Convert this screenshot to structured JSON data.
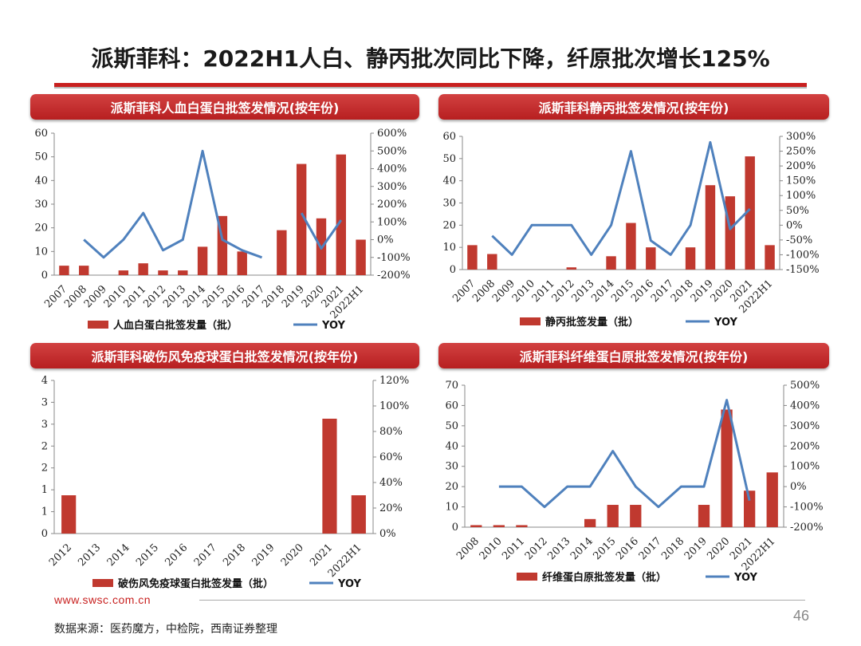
{
  "page": {
    "title": "派斯菲科：2022H1人白、静丙批次同比下降，纤原批次增长125%",
    "footer_url": "www.swsc.com.cn",
    "footer_source": "数据来源：医药魔方，中检院，西南证券整理",
    "page_number": "46"
  },
  "colors": {
    "bar": "#c0392f",
    "line": "#4f81bd",
    "header": "#c8201f"
  },
  "chart_data": [
    {
      "type": "bar+line",
      "title": "派斯菲科人血白蛋白批签发情况(按年份)",
      "categories": [
        "2007",
        "2008",
        "2009",
        "2010",
        "2011",
        "2012",
        "2013",
        "2014",
        "2015",
        "2016",
        "2017",
        "2018",
        "2019",
        "2020",
        "2021",
        "2022H1"
      ],
      "bar_series": {
        "name": "人血白蛋白批签发量（批）",
        "values": [
          4,
          4,
          0,
          2,
          5,
          2,
          2,
          12,
          25,
          10,
          0,
          19,
          47,
          24,
          51,
          15
        ]
      },
      "line_series": {
        "name": "YOY",
        "values": [
          null,
          0,
          -100,
          0,
          150,
          -60,
          0,
          500,
          0,
          -60,
          -100,
          null,
          150,
          -50,
          110,
          null
        ]
      },
      "y_left": {
        "min": 0,
        "max": 60,
        "ticks": [
          "0",
          "10",
          "20",
          "30",
          "40",
          "50",
          "60"
        ]
      },
      "y_right": {
        "min": -200,
        "max": 600,
        "ticks": [
          "-200%",
          "-100%",
          "0%",
          "100%",
          "200%",
          "300%",
          "400%",
          "500%",
          "600%"
        ]
      }
    },
    {
      "type": "bar+line",
      "title": "派斯菲科静丙批签发情况(按年份)",
      "categories": [
        "2007",
        "2008",
        "2009",
        "2010",
        "2011",
        "2012",
        "2013",
        "2014",
        "2015",
        "2016",
        "2017",
        "2018",
        "2019",
        "2020",
        "2021",
        "2022H1"
      ],
      "bar_series": {
        "name": "静丙批签发量（批）",
        "values": [
          11,
          7,
          0,
          0,
          0,
          1,
          0,
          6,
          21,
          10,
          0,
          10,
          38,
          33,
          51,
          11
        ]
      },
      "line_series": {
        "name": "YOY",
        "values": [
          null,
          -36,
          -100,
          0,
          0,
          0,
          -100,
          0,
          250,
          -52,
          -100,
          0,
          280,
          -13,
          55,
          null
        ]
      },
      "y_left": {
        "min": 0,
        "max": 60,
        "ticks": [
          "0",
          "10",
          "20",
          "30",
          "40",
          "50",
          "60"
        ]
      },
      "y_right": {
        "min": -150,
        "max": 300,
        "ticks": [
          "-150%",
          "-100%",
          "-50%",
          "0%",
          "50%",
          "100%",
          "150%",
          "200%",
          "250%",
          "300%"
        ]
      }
    },
    {
      "type": "bar+line",
      "title": "派斯菲科破伤风免疫球蛋白批签发情况(按年份)",
      "categories": [
        "2012",
        "2013",
        "2014",
        "2015",
        "2016",
        "2017",
        "2018",
        "2019",
        "2020",
        "2021",
        "2022H1"
      ],
      "bar_series": {
        "name": "破伤风免疫球蛋白批签发量（批）",
        "values": [
          1,
          0,
          0,
          0,
          0,
          0,
          0,
          0,
          0,
          3,
          1
        ]
      },
      "line_series": {
        "name": "YOY",
        "values": [
          null,
          null,
          null,
          null,
          null,
          null,
          null,
          null,
          null,
          null,
          null
        ]
      },
      "y_left": {
        "min": 0,
        "max": 4,
        "ticks": [
          "0",
          "1",
          "1",
          "2",
          "2",
          "3",
          "3",
          "4"
        ]
      },
      "y_right": {
        "min": 0,
        "max": 120,
        "ticks": [
          "0%",
          "20%",
          "40%",
          "60%",
          "80%",
          "100%",
          "120%"
        ]
      }
    },
    {
      "type": "bar+line",
      "title": "派斯菲科纤维蛋白原批签发情况(按年份)",
      "categories": [
        "2008",
        "2010",
        "2011",
        "2012",
        "2013",
        "2014",
        "2015",
        "2016",
        "2017",
        "2018",
        "2019",
        "2020",
        "2021",
        "2022H1"
      ],
      "bar_series": {
        "name": "纤维蛋白原批签发量（批）",
        "values": [
          1,
          1,
          1,
          0,
          0,
          4,
          11,
          11,
          0,
          0,
          11,
          58,
          18,
          27
        ]
      },
      "line_series": {
        "name": "YOY",
        "values": [
          null,
          0,
          0,
          -100,
          0,
          0,
          175,
          0,
          -100,
          0,
          0,
          427,
          -69,
          null
        ]
      },
      "y_left": {
        "min": 0,
        "max": 70,
        "ticks": [
          "0",
          "10",
          "20",
          "30",
          "40",
          "50",
          "60",
          "70"
        ]
      },
      "y_right": {
        "min": -200,
        "max": 500,
        "ticks": [
          "-200%",
          "-100%",
          "0%",
          "100%",
          "200%",
          "300%",
          "400%",
          "500%"
        ]
      }
    }
  ]
}
